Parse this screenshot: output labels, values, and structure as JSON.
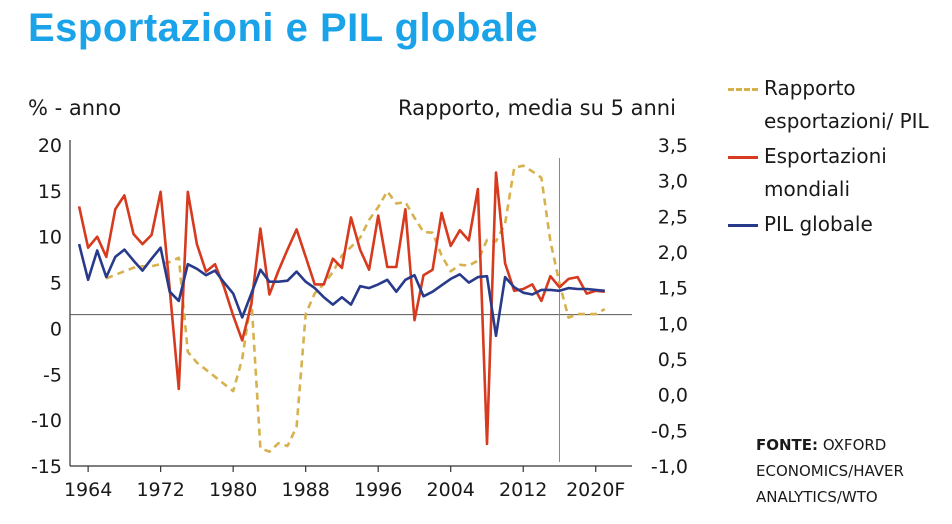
{
  "title": "Esportazioni e PIL globale",
  "left_axis_unit": "% - anno",
  "right_axis_unit": "Rapporto, media su 5 anni",
  "legend": [
    {
      "label": "Rapporto esportazioni/ PIL",
      "color": "#d6b14e",
      "style": "dashed"
    },
    {
      "label": "Esportazioni mondiali",
      "color": "#d63a1f",
      "style": "solid"
    },
    {
      "label": "PIL globale",
      "color": "#283a8a",
      "style": "solid"
    }
  ],
  "source_label": "FONTE:",
  "source_text": "OXFORD ECONOMICS/HAVER ANALYTICS/WTO",
  "chart_data": {
    "type": "line",
    "x_tick_labels": [
      "1964",
      "1972",
      "1980",
      "1988",
      "1996",
      "2004",
      "2012",
      "2020F"
    ],
    "x_tick_values": [
      1964,
      1972,
      1980,
      1988,
      1996,
      2004,
      2012,
      2020
    ],
    "xlim": [
      1962,
      2024
    ],
    "forecast_start": 2016,
    "ylim_left": [
      -15,
      20
    ],
    "yticks_left": [
      "20",
      "15",
      "10",
      "5",
      "0",
      "-5",
      "-10",
      "-15"
    ],
    "ylim_right": [
      -1.0,
      3.5
    ],
    "yticks_right": [
      "3,5",
      "3,0",
      "2,5",
      "2,0",
      "1,5",
      "1,0",
      "0,5",
      "0,0",
      "-0,5",
      "-1,0"
    ],
    "series": [
      {
        "name": "Esportazioni mondiali",
        "axis": "left",
        "x": [
          1963,
          1964,
          1965,
          1966,
          1967,
          1968,
          1969,
          1970,
          1971,
          1972,
          1973,
          1974,
          1975,
          1976,
          1977,
          1978,
          1979,
          1980,
          1981,
          1982,
          1983,
          1984,
          1985,
          1986,
          1987,
          1988,
          1989,
          1990,
          1991,
          1992,
          1993,
          1994,
          1995,
          1996,
          1997,
          1998,
          1999,
          2000,
          2001,
          2002,
          2003,
          2004,
          2005,
          2006,
          2007,
          2008,
          2009,
          2010,
          2011,
          2012,
          2013,
          2014,
          2015,
          2016,
          2017,
          2018,
          2019,
          2020,
          2021
        ],
        "y": [
          13.3,
          8.8,
          10,
          7.8,
          13,
          14.5,
          10.3,
          9.2,
          10.2,
          14.9,
          4.3,
          -6.6,
          14.9,
          9.2,
          6.2,
          7,
          4.5,
          1.4,
          -1.3,
          2.6,
          10.9,
          3.7,
          6.3,
          8.6,
          10.8,
          7.8,
          4.8,
          4.8,
          7.6,
          6.6,
          12.1,
          8.6,
          6.4,
          12.3,
          6.7,
          6.7,
          13,
          0.9,
          5.8,
          6.4,
          12.6,
          9,
          10.7,
          9.6,
          15.2,
          -12.6,
          17,
          7.1,
          4.1,
          4.3,
          4.8,
          3,
          5.7,
          4.5,
          5.4,
          5.6,
          3.8,
          4.1,
          4
        ]
      },
      {
        "name": "PIL globale",
        "axis": "left",
        "x": [
          1963,
          1964,
          1965,
          1966,
          1967,
          1968,
          1969,
          1970,
          1971,
          1972,
          1973,
          1974,
          1975,
          1976,
          1977,
          1978,
          1979,
          1980,
          1981,
          1982,
          1983,
          1984,
          1985,
          1986,
          1987,
          1988,
          1989,
          1990,
          1991,
          1992,
          1993,
          1994,
          1995,
          1996,
          1997,
          1998,
          1999,
          2000,
          2001,
          2002,
          2003,
          2004,
          2005,
          2006,
          2007,
          2008,
          2009,
          2010,
          2011,
          2012,
          2013,
          2014,
          2015,
          2016,
          2017,
          2018,
          2019,
          2020,
          2021
        ],
        "y": [
          9.2,
          5.3,
          8.5,
          5.6,
          7.8,
          8.6,
          7.4,
          6.3,
          7.6,
          8.8,
          4,
          3,
          7,
          6.5,
          5.8,
          6.3,
          5,
          3.8,
          1.2,
          3.8,
          6.4,
          5.1,
          5.1,
          5.2,
          6.2,
          5.1,
          4.4,
          3.4,
          2.6,
          3.4,
          2.6,
          4.6,
          4.4,
          4.8,
          5.3,
          4,
          5.3,
          5.8,
          3.5,
          4,
          4.7,
          5.4,
          5.9,
          5,
          5.6,
          5.7,
          -0.8,
          5.6,
          4.5,
          3.9,
          3.7,
          4.2,
          4.2,
          4.1,
          4.4,
          4.3,
          4.3,
          4.2,
          4.1
        ]
      },
      {
        "name": "Rapporto esportazioni/ PIL",
        "axis": "right",
        "x": [
          1966,
          1967,
          1968,
          1969,
          1970,
          1971,
          1972,
          1973,
          1974,
          1975,
          1976,
          1977,
          1978,
          1979,
          1980,
          1981,
          1982,
          1983,
          1984,
          1985,
          1986,
          1987,
          1988,
          1989,
          1990,
          1991,
          1992,
          1993,
          1994,
          1995,
          1996,
          1997,
          1998,
          1999,
          2000,
          2001,
          2002,
          2003,
          2004,
          2005,
          2006,
          2007,
          2008,
          2009,
          2010,
          2011,
          2012,
          2013,
          2014,
          2015,
          2016,
          2017,
          2018,
          2019,
          2020,
          2021
        ],
        "y": [
          1.63,
          1.68,
          1.73,
          1.78,
          1.8,
          1.8,
          1.83,
          1.86,
          1.92,
          0.6,
          0.45,
          0.35,
          0.25,
          0.15,
          0.05,
          0.5,
          1.35,
          -0.75,
          -0.8,
          -0.68,
          -0.72,
          -0.45,
          1.13,
          1.42,
          1.55,
          1.72,
          1.95,
          2.07,
          2.2,
          2.45,
          2.63,
          2.85,
          2.68,
          2.7,
          2.48,
          2.28,
          2.27,
          1.95,
          1.73,
          1.82,
          1.81,
          1.88,
          2.17,
          2.15,
          2.4,
          3.18,
          3.21,
          3.13,
          3.04,
          2.15,
          1.56,
          1.08,
          1.13,
          1.13,
          1.13,
          1.2
        ]
      }
    ]
  }
}
